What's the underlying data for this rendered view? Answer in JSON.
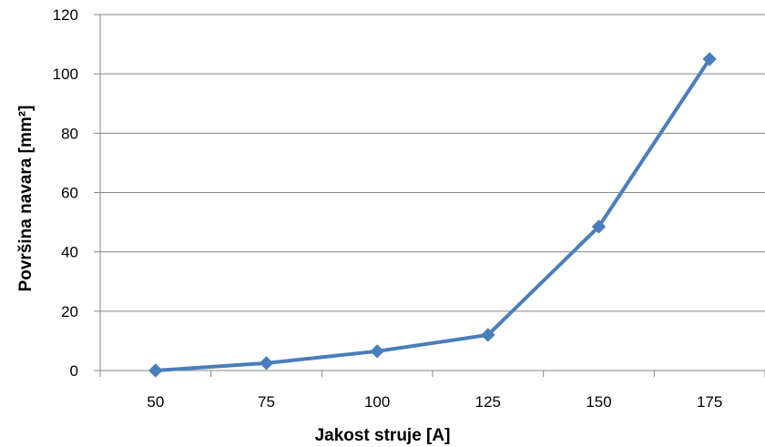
{
  "chart_data": {
    "type": "line",
    "title": "",
    "xlabel": "Jakost struje [A]",
    "ylabel": "Površina navara [mm²]",
    "categories": [
      "50",
      "75",
      "100",
      "125",
      "150",
      "175"
    ],
    "series": [
      {
        "values": [
          0,
          2.5,
          6.5,
          12,
          48.5,
          105
        ]
      }
    ],
    "ylim": [
      0,
      120
    ],
    "yticks": [
      "0",
      "20",
      "40",
      "60",
      "80",
      "100",
      "120"
    ],
    "grid": true,
    "legend": "none",
    "line_color": "#4a7ebb",
    "marker": "diamond",
    "gridline_color": "#868686"
  }
}
